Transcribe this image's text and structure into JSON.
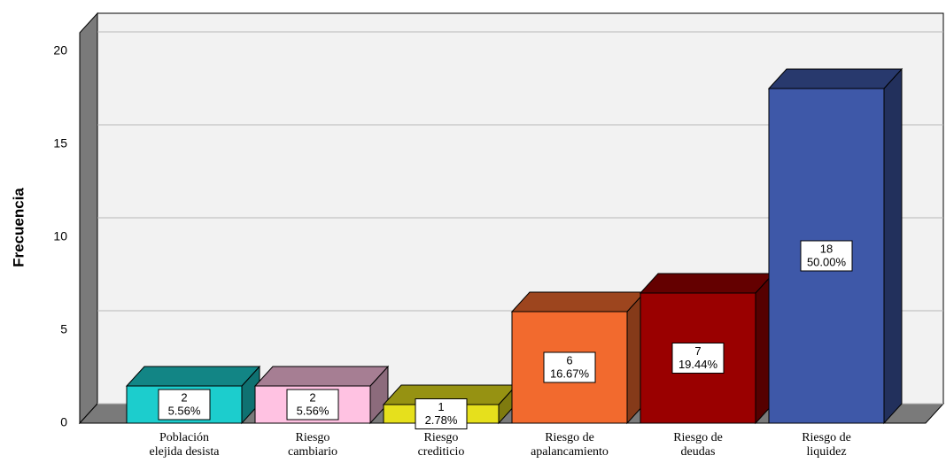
{
  "chart_data": {
    "type": "bar3d",
    "y_label": "Frecuencia",
    "categories": [
      "Población\nelejida desista",
      "Riesgo\ncambiario",
      "Riesgo\ncrediticio",
      "Riesgo de\napalancamiento",
      "Riesgo de\ndeudas",
      "Riesgo de\nliquidez"
    ],
    "values": [
      2,
      2,
      1,
      6,
      7,
      18
    ],
    "percentages": [
      5.56,
      5.56,
      2.78,
      16.67,
      19.44,
      50.0
    ],
    "percentage_labels": [
      "5.56%",
      "5.56%",
      "2.78%",
      "16.67%",
      "19.44%",
      "50.00%"
    ],
    "colors": [
      "#1ccdcd",
      "#ffc2e2",
      "#e6e01c",
      "#f26a2e",
      "#9a0000",
      "#3e58a8"
    ],
    "ylim": [
      0,
      21
    ],
    "yticks": [
      0,
      5,
      10,
      15,
      20
    ],
    "grid": true
  }
}
